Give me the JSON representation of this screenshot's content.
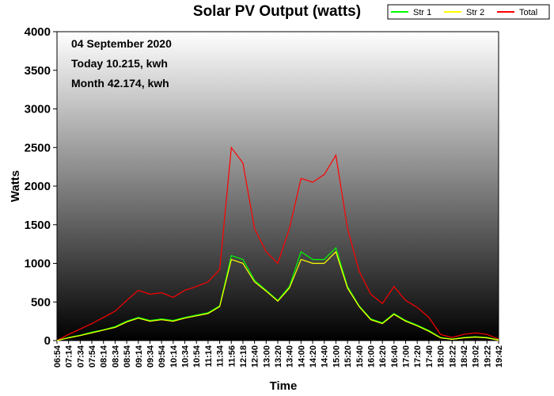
{
  "chart_data": {
    "type": "line",
    "title": "Solar PV Output (watts)",
    "xlabel": "Time",
    "ylabel": "Watts",
    "ylim": [
      0,
      4000
    ],
    "yticks": [
      0,
      500,
      1000,
      1500,
      2000,
      2500,
      3000,
      3500,
      4000
    ],
    "grid": false,
    "legend_position": "top-right",
    "annotations": [
      "04 September 2020",
      "Today 10.215, kwh",
      "Month 42.174, kwh"
    ],
    "categories": [
      "06:54",
      "07:14",
      "07:34",
      "07:54",
      "08:14",
      "08:34",
      "08:54",
      "09:14",
      "09:34",
      "09:54",
      "10:14",
      "10:34",
      "10:54",
      "11:14",
      "11:34",
      "11:56",
      "12:18",
      "12:40",
      "13:00",
      "13:20",
      "13:40",
      "14:00",
      "14:20",
      "14:40",
      "15:00",
      "15:20",
      "15:40",
      "16:00",
      "16:20",
      "16:40",
      "17:00",
      "17:20",
      "17:40",
      "18:00",
      "18:22",
      "18:42",
      "19:02",
      "19:22",
      "19:42"
    ],
    "series": [
      {
        "name": "Str 1",
        "color": "#00ff00",
        "values": [
          0,
          40,
          70,
          110,
          140,
          180,
          250,
          300,
          260,
          280,
          260,
          300,
          330,
          360,
          450,
          1100,
          1050,
          780,
          650,
          520,
          700,
          1150,
          1050,
          1050,
          1200,
          700,
          450,
          280,
          230,
          350,
          260,
          200,
          130,
          40,
          20,
          40,
          50,
          40,
          10
        ]
      },
      {
        "name": "Str 2",
        "color": "#ffff00",
        "values": [
          0,
          35,
          65,
          100,
          135,
          170,
          240,
          290,
          250,
          270,
          250,
          290,
          320,
          350,
          440,
          1050,
          1000,
          760,
          640,
          510,
          680,
          1050,
          1000,
          1000,
          1150,
          680,
          440,
          270,
          220,
          340,
          250,
          190,
          120,
          35,
          15,
          35,
          45,
          35,
          5
        ]
      },
      {
        "name": "Total",
        "color": "#ff0000",
        "values": [
          0,
          80,
          150,
          220,
          300,
          380,
          520,
          650,
          600,
          620,
          560,
          650,
          700,
          760,
          920,
          2500,
          2300,
          1450,
          1150,
          1000,
          1450,
          2100,
          2050,
          2150,
          2400,
          1450,
          900,
          600,
          480,
          700,
          520,
          430,
          300,
          80,
          40,
          80,
          100,
          80,
          20
        ]
      }
    ]
  }
}
